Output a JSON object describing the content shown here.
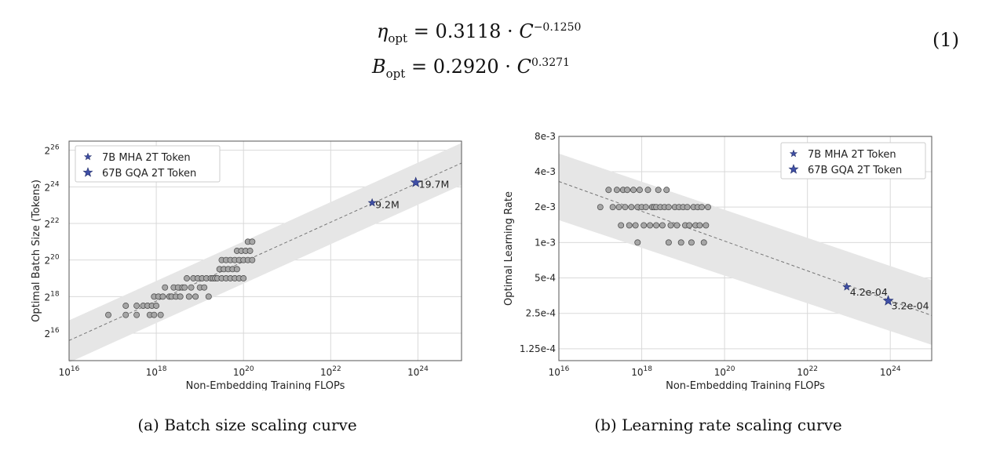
{
  "equations": {
    "line1": {
      "lhs": "η",
      "lhs_sub": "opt",
      "coef": "0.3118",
      "var": "C",
      "exp": "−0.1250"
    },
    "line2": {
      "lhs": "B",
      "lhs_sub": "opt",
      "coef": "0.2920",
      "var": "C",
      "exp": "0.3271"
    },
    "number": "(1)"
  },
  "chart_data": [
    {
      "type": "scatter",
      "title": "",
      "xlabel": "Non-Embedding Training FLOPs",
      "ylabel": "Optimal Batch Size (Tokens)",
      "xscale": "log10",
      "yscale": "log2",
      "xlim_exp10": [
        16,
        25
      ],
      "ylim_exp2": [
        14.5,
        26.5
      ],
      "xticks": [
        {
          "exp": 16,
          "base": "10",
          "sup": "16"
        },
        {
          "exp": 18,
          "base": "10",
          "sup": "18"
        },
        {
          "exp": 20,
          "base": "10",
          "sup": "20"
        },
        {
          "exp": 22,
          "base": "10",
          "sup": "22"
        },
        {
          "exp": 24,
          "base": "10",
          "sup": "24"
        }
      ],
      "yticks": [
        {
          "exp": 16,
          "base": "2",
          "sup": "16"
        },
        {
          "exp": 18,
          "base": "2",
          "sup": "18"
        },
        {
          "exp": 20,
          "base": "2",
          "sup": "20"
        },
        {
          "exp": 22,
          "base": "2",
          "sup": "22"
        },
        {
          "exp": 24,
          "base": "2",
          "sup": "24"
        },
        {
          "exp": 26,
          "base": "2",
          "sup": "26"
        }
      ],
      "grid": true,
      "fit": {
        "x_exp10": [
          16,
          25
        ],
        "y_exp2": [
          15.6,
          25.3
        ]
      },
      "band": {
        "x_exp10": [
          16,
          25
        ],
        "lower_y_exp2": [
          14.4,
          24.1
        ],
        "upper_y_exp2": [
          16.7,
          26.4
        ]
      },
      "series": [
        {
          "name": "experiments",
          "marker": "circle",
          "color": "#a6a6a6",
          "points_log": [
            [
              16.9,
              17.0
            ],
            [
              17.3,
              17.0
            ],
            [
              17.3,
              17.5
            ],
            [
              17.55,
              17.0
            ],
            [
              17.55,
              17.5
            ],
            [
              17.7,
              17.5
            ],
            [
              17.8,
              17.5
            ],
            [
              17.85,
              17.0
            ],
            [
              17.9,
              17.5
            ],
            [
              17.95,
              18.0
            ],
            [
              17.95,
              17.0
            ],
            [
              18.0,
              17.5
            ],
            [
              18.05,
              18.0
            ],
            [
              18.1,
              17.0
            ],
            [
              18.15,
              18.0
            ],
            [
              18.2,
              18.5
            ],
            [
              18.3,
              18.0
            ],
            [
              18.35,
              18.0
            ],
            [
              18.4,
              18.5
            ],
            [
              18.45,
              18.0
            ],
            [
              18.5,
              18.5
            ],
            [
              18.55,
              18.0
            ],
            [
              18.6,
              18.5
            ],
            [
              18.65,
              18.5
            ],
            [
              18.7,
              19.0
            ],
            [
              18.75,
              18.0
            ],
            [
              18.8,
              18.5
            ],
            [
              18.85,
              19.0
            ],
            [
              18.9,
              18.0
            ],
            [
              18.95,
              19.0
            ],
            [
              19.0,
              18.5
            ],
            [
              19.05,
              19.0
            ],
            [
              19.1,
              18.5
            ],
            [
              19.15,
              19.0
            ],
            [
              19.2,
              18.0
            ],
            [
              19.25,
              19.0
            ],
            [
              19.3,
              19.0
            ],
            [
              19.35,
              19.0
            ],
            [
              19.4,
              19.0
            ],
            [
              19.45,
              19.5
            ],
            [
              19.5,
              19.0
            ],
            [
              19.5,
              20.0
            ],
            [
              19.55,
              19.5
            ],
            [
              19.6,
              19.0
            ],
            [
              19.6,
              20.0
            ],
            [
              19.65,
              19.5
            ],
            [
              19.7,
              19.0
            ],
            [
              19.7,
              20.0
            ],
            [
              19.75,
              19.5
            ],
            [
              19.8,
              19.0
            ],
            [
              19.8,
              20.0
            ],
            [
              19.85,
              20.5
            ],
            [
              19.85,
              19.5
            ],
            [
              19.9,
              20.0
            ],
            [
              19.9,
              19.0
            ],
            [
              19.95,
              20.5
            ],
            [
              20.0,
              20.0
            ],
            [
              20.0,
              19.0
            ],
            [
              20.05,
              20.5
            ],
            [
              20.1,
              20.0
            ],
            [
              20.1,
              21.0
            ],
            [
              20.15,
              20.5
            ],
            [
              20.2,
              20.0
            ],
            [
              20.2,
              21.0
            ]
          ]
        },
        {
          "name": "7B MHA 2T Token",
          "marker": "star-small",
          "color": "#3f4fa6",
          "points_log": [
            [
              22.95,
              23.13
            ]
          ]
        },
        {
          "name": "67B GQA 2T Token",
          "marker": "star-large",
          "color": "#3f4fa6",
          "points_log": [
            [
              23.95,
              24.24
            ]
          ]
        }
      ],
      "annotations": [
        {
          "text": "9.2M",
          "point_log": [
            22.95,
            23.13
          ]
        },
        {
          "text": "19.7M",
          "point_log": [
            23.95,
            24.24
          ]
        }
      ],
      "legend": {
        "placement": "top-left",
        "entries": [
          "7B MHA 2T Token",
          "67B GQA 2T Token"
        ]
      }
    },
    {
      "type": "scatter",
      "title": "",
      "xlabel": "Non-Embedding Training FLOPs",
      "ylabel": "Optimal Learning Rate",
      "xscale": "log10",
      "yscale": "log2",
      "xlim_exp10": [
        16,
        25
      ],
      "ylim_exp2": [
        -13.3,
        -6.97
      ],
      "xticks": [
        {
          "exp": 16,
          "base": "10",
          "sup": "16"
        },
        {
          "exp": 18,
          "base": "10",
          "sup": "18"
        },
        {
          "exp": 20,
          "base": "10",
          "sup": "20"
        },
        {
          "exp": 22,
          "base": "10",
          "sup": "22"
        },
        {
          "exp": 24,
          "base": "10",
          "sup": "24"
        }
      ],
      "yticks": [
        {
          "value": 0.000125,
          "label": "1.25e-4"
        },
        {
          "value": 0.00025,
          "label": "2.5e-4"
        },
        {
          "value": 0.0005,
          "label": "5e-4"
        },
        {
          "value": 0.001,
          "label": "1e-3"
        },
        {
          "value": 0.002,
          "label": "2e-3"
        },
        {
          "value": 0.004,
          "label": "4e-3"
        },
        {
          "value": 0.008,
          "label": "8e-3"
        }
      ],
      "grid": true,
      "fit": {
        "x_exp10": [
          16,
          25
        ],
        "y_value": [
          0.0033,
          0.00024
        ]
      },
      "band": {
        "x_exp10": [
          16,
          25
        ],
        "lower_y_value": [
          0.00155,
          0.000135
        ],
        "upper_y_value": [
          0.0057,
          0.00048
        ]
      },
      "series": [
        {
          "name": "experiments",
          "marker": "circle",
          "color": "#a6a6a6",
          "points": [
            [
              17.0,
              0.002
            ],
            [
              17.2,
              0.0028
            ],
            [
              17.3,
              0.002
            ],
            [
              17.4,
              0.0028
            ],
            [
              17.45,
              0.002
            ],
            [
              17.5,
              0.0014
            ],
            [
              17.55,
              0.0028
            ],
            [
              17.6,
              0.002
            ],
            [
              17.65,
              0.0028
            ],
            [
              17.7,
              0.0014
            ],
            [
              17.75,
              0.002
            ],
            [
              17.8,
              0.0028
            ],
            [
              17.85,
              0.0014
            ],
            [
              17.9,
              0.001
            ],
            [
              17.9,
              0.002
            ],
            [
              17.95,
              0.0028
            ],
            [
              18.0,
              0.002
            ],
            [
              18.05,
              0.0014
            ],
            [
              18.1,
              0.002
            ],
            [
              18.15,
              0.0028
            ],
            [
              18.2,
              0.0014
            ],
            [
              18.25,
              0.002
            ],
            [
              18.3,
              0.002
            ],
            [
              18.35,
              0.0014
            ],
            [
              18.35,
              0.002
            ],
            [
              18.4,
              0.0028
            ],
            [
              18.45,
              0.002
            ],
            [
              18.5,
              0.0014
            ],
            [
              18.55,
              0.002
            ],
            [
              18.6,
              0.0028
            ],
            [
              18.65,
              0.001
            ],
            [
              18.65,
              0.002
            ],
            [
              18.7,
              0.0014
            ],
            [
              18.8,
              0.002
            ],
            [
              18.85,
              0.0014
            ],
            [
              18.9,
              0.002
            ],
            [
              18.95,
              0.001
            ],
            [
              19.0,
              0.002
            ],
            [
              19.05,
              0.0014
            ],
            [
              19.1,
              0.002
            ],
            [
              19.15,
              0.0014
            ],
            [
              19.2,
              0.001
            ],
            [
              19.25,
              0.002
            ],
            [
              19.3,
              0.0014
            ],
            [
              19.35,
              0.002
            ],
            [
              19.4,
              0.0014
            ],
            [
              19.45,
              0.002
            ],
            [
              19.5,
              0.001
            ],
            [
              19.55,
              0.0014
            ],
            [
              19.6,
              0.002
            ]
          ]
        },
        {
          "name": "7B MHA 2T Token",
          "marker": "star-small",
          "color": "#3f4fa6",
          "points": [
            [
              22.95,
              0.00042
            ]
          ]
        },
        {
          "name": "67B GQA 2T Token",
          "marker": "star-large",
          "color": "#3f4fa6",
          "points": [
            [
              23.95,
              0.00032
            ]
          ]
        }
      ],
      "annotations": [
        {
          "text": "4.2e-04",
          "point": [
            22.95,
            0.00042
          ]
        },
        {
          "text": "3.2e-04",
          "point": [
            23.95,
            0.00032
          ]
        }
      ],
      "legend": {
        "placement": "top-right",
        "entries": [
          "7B MHA 2T Token",
          "67B GQA 2T Token"
        ]
      }
    }
  ],
  "captions": {
    "a": "(a)  Batch size scaling curve",
    "b": "(b)  Learning rate scaling curve"
  }
}
